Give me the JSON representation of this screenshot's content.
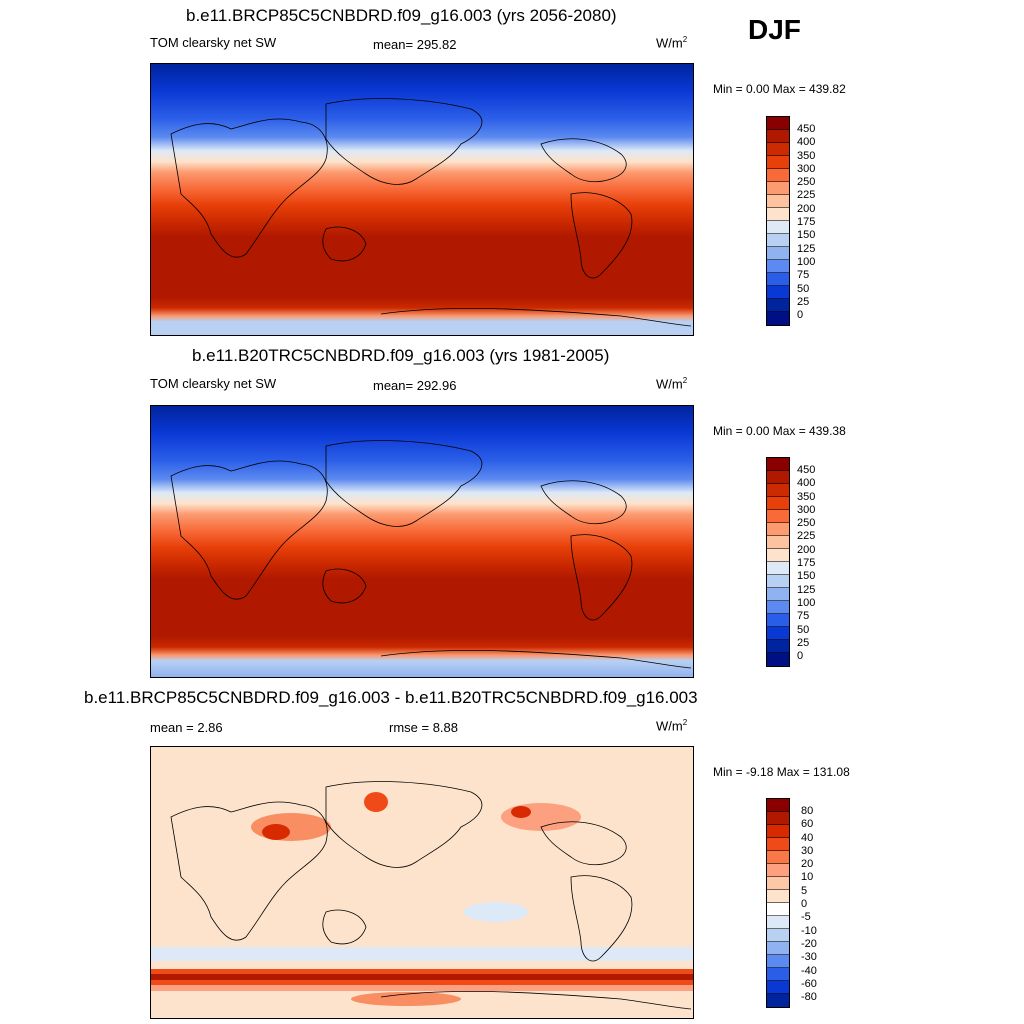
{
  "season": "DJF",
  "panels": [
    {
      "title": "b.e11.BRCP85C5CNBDRD.f09_g16.003 (yrs 2056-2080)",
      "left_label": "TOM clearsky net SW",
      "center_label": "mean= 295.82",
      "units": "W/m",
      "units_sup": "2",
      "minmax": "Min =   0.00 Max = 439.82",
      "colorbar_labels": [
        "450",
        "400",
        "350",
        "300",
        "250",
        "225",
        "200",
        "175",
        "150",
        "125",
        "100",
        "75",
        "50",
        "25",
        "0"
      ]
    },
    {
      "title": "b.e11.B20TRC5CNBDRD.f09_g16.003 (yrs 1981-2005)",
      "left_label": "TOM clearsky net SW",
      "center_label": "mean= 292.96",
      "units": "W/m",
      "units_sup": "2",
      "minmax": "Min =   0.00 Max = 439.38",
      "colorbar_labels": [
        "450",
        "400",
        "350",
        "300",
        "250",
        "225",
        "200",
        "175",
        "150",
        "125",
        "100",
        "75",
        "50",
        "25",
        "0"
      ]
    },
    {
      "title": "b.e11.BRCP85C5CNBDRD.f09_g16.003 - b.e11.B20TRC5CNBDRD.f09_g16.003",
      "left_label": "mean =   2.86",
      "center_label": "rmse =   8.88",
      "units": "W/m",
      "units_sup": "2",
      "minmax": "Min =  -9.18 Max = 131.08",
      "colorbar_labels": [
        "80",
        "60",
        "40",
        "30",
        "20",
        "10",
        "5",
        "0",
        "-5",
        "-10",
        "-20",
        "-30",
        "-40",
        "-60",
        "-80"
      ]
    }
  ],
  "colors": {
    "abs_scale": [
      "#8a0000",
      "#b01800",
      "#cc2a00",
      "#e8400a",
      "#f86a38",
      "#fc9a70",
      "#fdc2a0",
      "#fde3cc",
      "#dde9f7",
      "#b8d0f2",
      "#90b2f0",
      "#5c8af0",
      "#2b5ee8",
      "#0a38d4",
      "#00249e",
      "#000f84"
    ],
    "diff_scale": [
      "#8a0000",
      "#b01800",
      "#d82a00",
      "#f04a18",
      "#f87848",
      "#fca080",
      "#fcc8a8",
      "#fde3cc",
      "#ffffff",
      "#dde9f7",
      "#b8d0f2",
      "#90b2f0",
      "#5c8af0",
      "#2b5ee8",
      "#0a38d4",
      "#00249e"
    ]
  }
}
